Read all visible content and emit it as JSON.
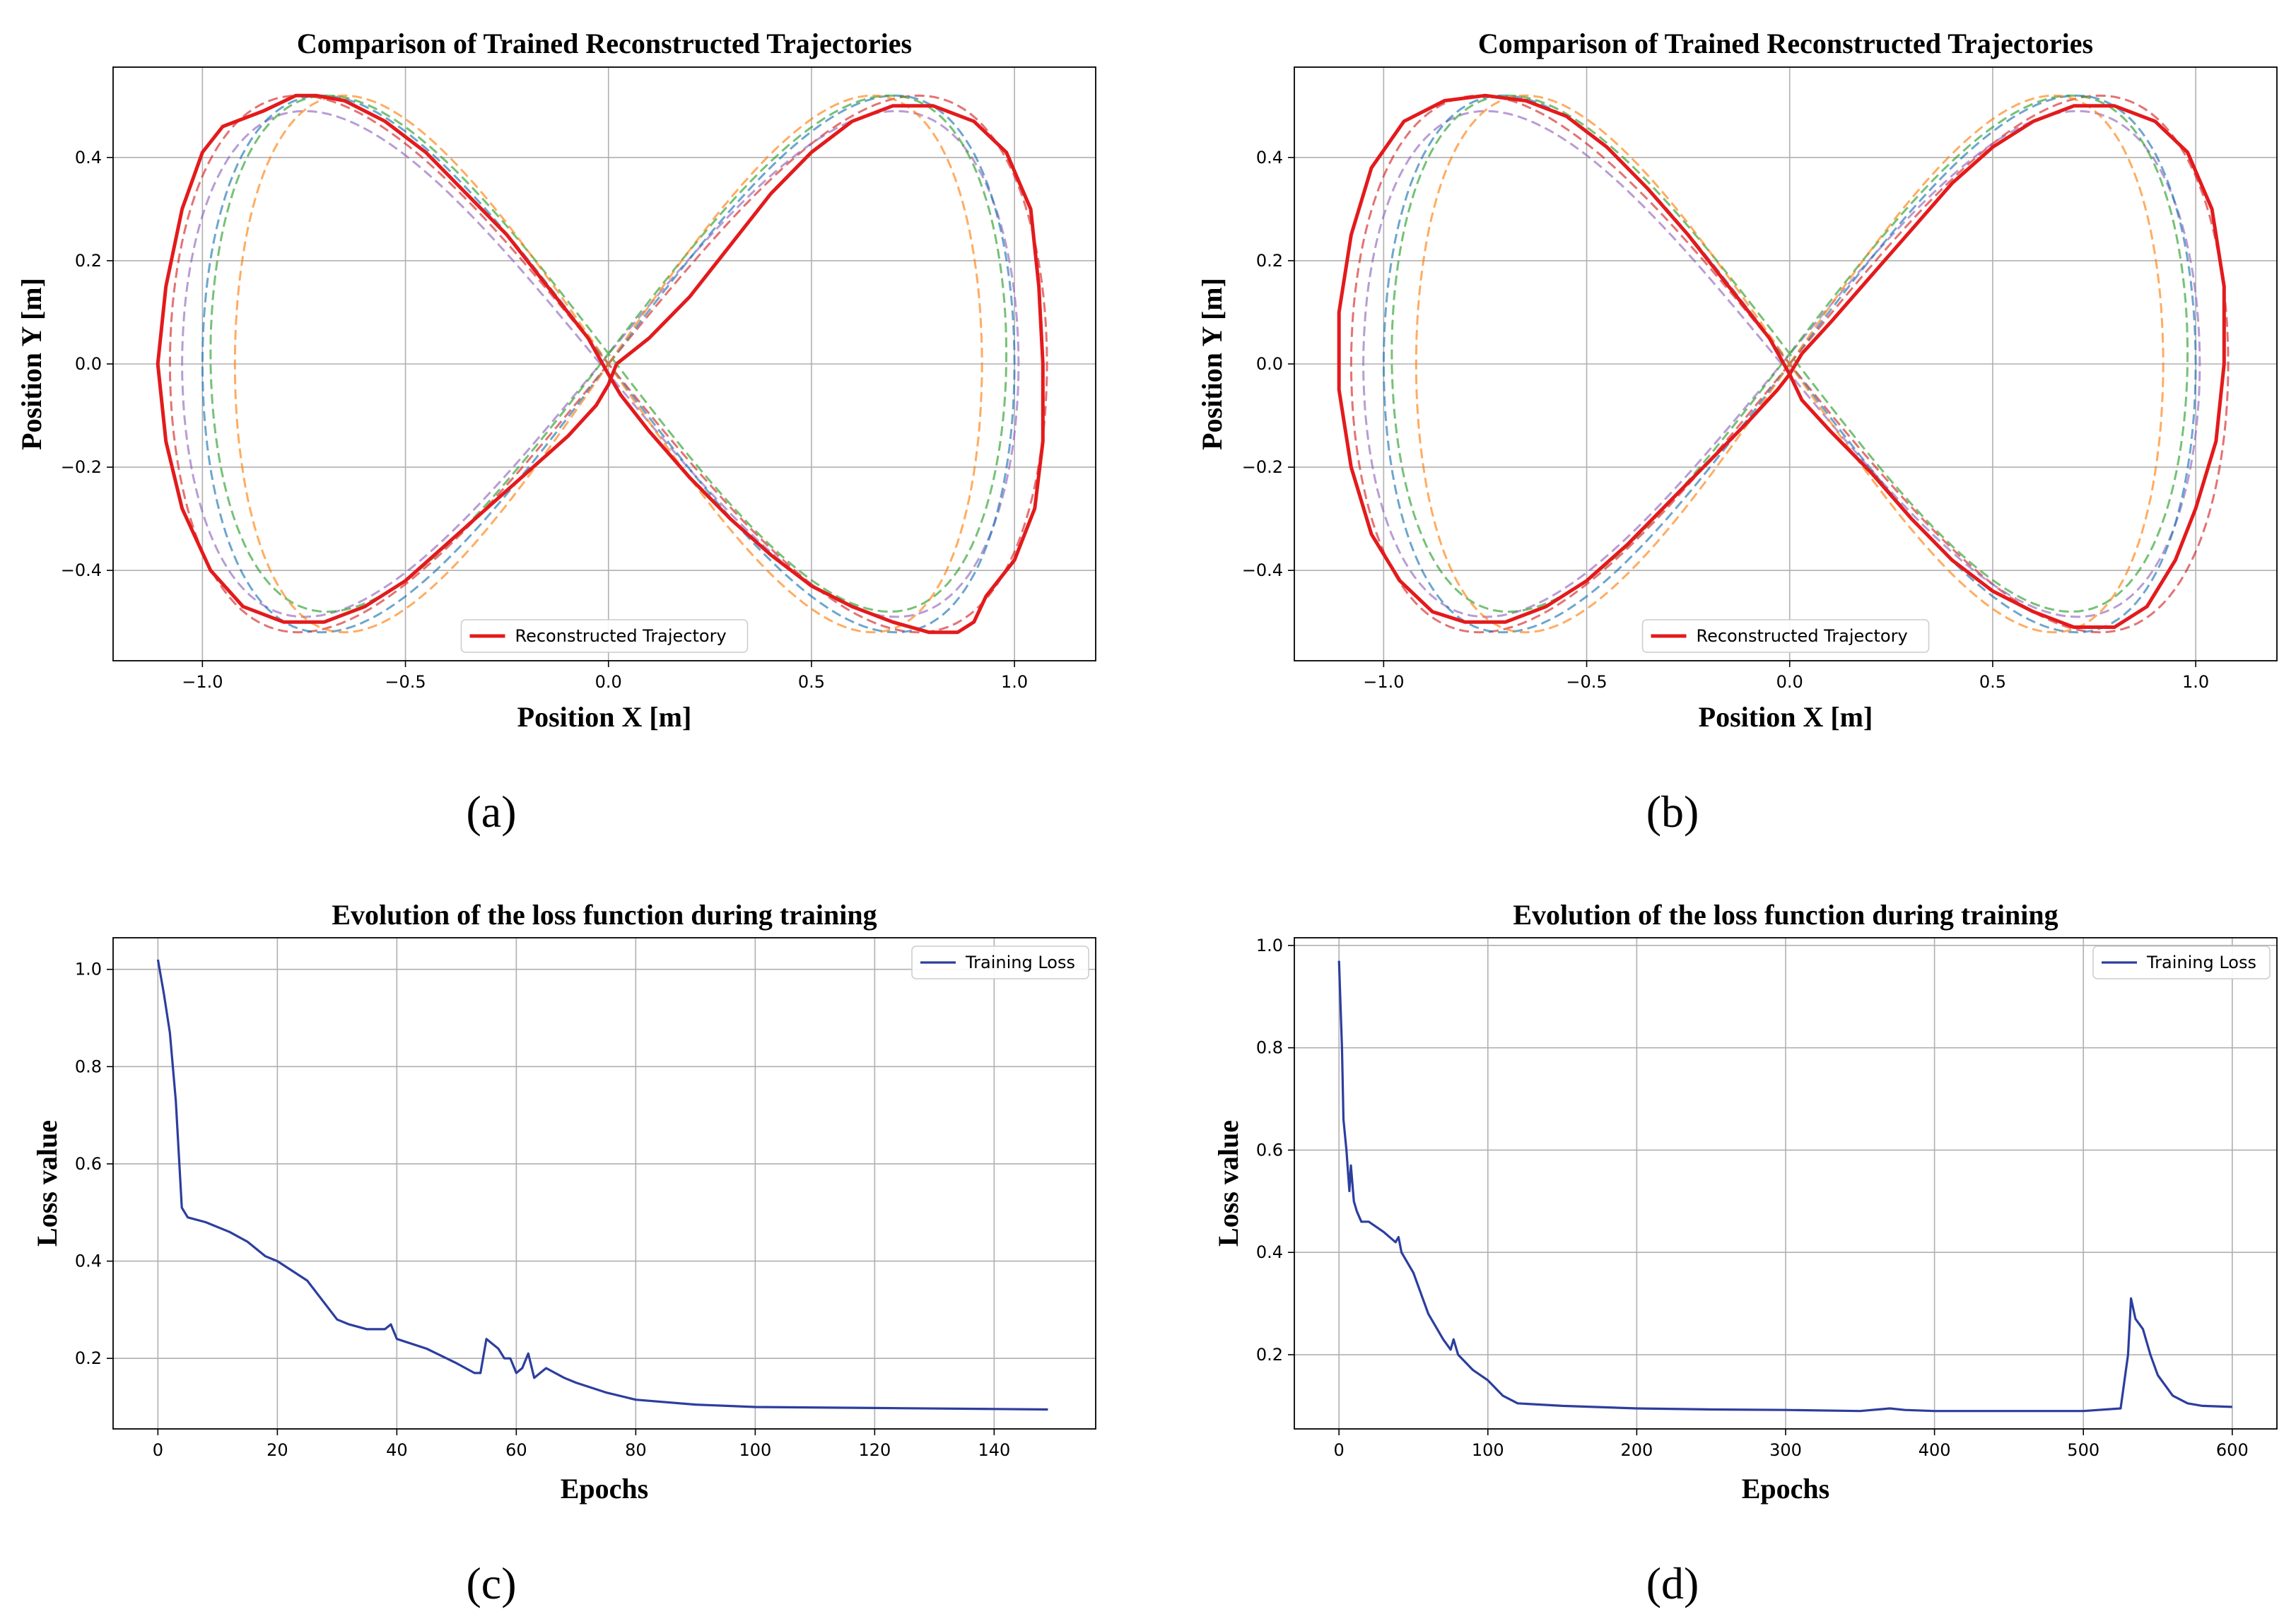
{
  "colors": {
    "reconstructed": "#e31a1c",
    "loss": "#2c3e9e",
    "grid": "#b0b0b0",
    "dashed": [
      "#d62728",
      "#9467bd",
      "#1f77b4",
      "#2ca02c",
      "#ff7f0e"
    ]
  },
  "chart_data": [
    {
      "panel": "(a)",
      "type": "line",
      "title": "Comparison of Trained Reconstructed Trajectories",
      "xlabel": "Position X [m]",
      "ylabel": "Position Y [m]",
      "xlim": [
        -1.22,
        1.2
      ],
      "ylim": [
        -0.575,
        0.575
      ],
      "xticks": [
        -1.0,
        -0.5,
        0.0,
        0.5,
        1.0
      ],
      "xtick_labels": [
        "−1.0",
        "−0.5",
        "0.0",
        "0.5",
        "1.0"
      ],
      "yticks": [
        -0.4,
        -0.2,
        0.0,
        0.2,
        0.4
      ],
      "ytick_labels": [
        "−0.4",
        "−0.2",
        "0.0",
        "0.2",
        "0.4"
      ],
      "grid": true,
      "legend": {
        "position": "bottom-center",
        "entries": [
          "Reconstructed Trajectory"
        ]
      },
      "dashed_curves": [
        {
          "a": 1.08,
          "b": 0.52,
          "cx": 0.0,
          "cy": 0.0,
          "color_index": 0
        },
        {
          "a": 1.03,
          "b": 0.49,
          "cx": -0.02,
          "cy": 0.0,
          "color_index": 1
        },
        {
          "a": 1.0,
          "b": 0.52,
          "cx": 0.0,
          "cy": 0.0,
          "color_index": 2
        },
        {
          "a": 0.98,
          "b": 0.5,
          "cx": 0.0,
          "cy": 0.02,
          "color_index": 3
        },
        {
          "a": 0.92,
          "b": 0.52,
          "cx": 0.0,
          "cy": 0.0,
          "color_index": 4
        }
      ],
      "series": [
        {
          "name": "Reconstructed Trajectory",
          "points": [
            [
              0.02,
              0.0
            ],
            [
              0.1,
              0.05
            ],
            [
              0.2,
              0.13
            ],
            [
              0.3,
              0.23
            ],
            [
              0.4,
              0.33
            ],
            [
              0.5,
              0.41
            ],
            [
              0.6,
              0.47
            ],
            [
              0.7,
              0.5
            ],
            [
              0.8,
              0.5
            ],
            [
              0.9,
              0.47
            ],
            [
              0.98,
              0.41
            ],
            [
              1.04,
              0.3
            ],
            [
              1.06,
              0.15
            ],
            [
              1.07,
              0.0
            ],
            [
              1.07,
              -0.15
            ],
            [
              1.05,
              -0.28
            ],
            [
              1.0,
              -0.38
            ],
            [
              0.93,
              -0.45
            ],
            [
              0.9,
              -0.5
            ],
            [
              0.86,
              -0.52
            ],
            [
              0.79,
              -0.52
            ],
            [
              0.7,
              -0.5
            ],
            [
              0.6,
              -0.47
            ],
            [
              0.5,
              -0.43
            ],
            [
              0.4,
              -0.37
            ],
            [
              0.3,
              -0.3
            ],
            [
              0.2,
              -0.22
            ],
            [
              0.1,
              -0.13
            ],
            [
              0.03,
              -0.06
            ],
            [
              0.0,
              -0.02
            ],
            [
              -0.05,
              0.05
            ],
            [
              -0.15,
              0.15
            ],
            [
              -0.25,
              0.25
            ],
            [
              -0.35,
              0.33
            ],
            [
              -0.45,
              0.41
            ],
            [
              -0.55,
              0.47
            ],
            [
              -0.65,
              0.51
            ],
            [
              -0.72,
              0.52
            ],
            [
              -0.77,
              0.52
            ],
            [
              -0.85,
              0.49
            ],
            [
              -0.95,
              0.46
            ],
            [
              -1.0,
              0.41
            ],
            [
              -1.05,
              0.3
            ],
            [
              -1.09,
              0.15
            ],
            [
              -1.11,
              0.0
            ],
            [
              -1.09,
              -0.15
            ],
            [
              -1.05,
              -0.28
            ],
            [
              -0.98,
              -0.4
            ],
            [
              -0.9,
              -0.47
            ],
            [
              -0.8,
              -0.5
            ],
            [
              -0.7,
              -0.5
            ],
            [
              -0.6,
              -0.47
            ],
            [
              -0.5,
              -0.42
            ],
            [
              -0.4,
              -0.35
            ],
            [
              -0.3,
              -0.28
            ],
            [
              -0.2,
              -0.21
            ],
            [
              -0.1,
              -0.14
            ],
            [
              -0.03,
              -0.08
            ],
            [
              0.0,
              -0.04
            ],
            [
              0.02,
              0.0
            ]
          ]
        }
      ]
    },
    {
      "panel": "(b)",
      "type": "line",
      "title": "Comparison of Trained Reconstructed Trajectories",
      "xlabel": "Position X [m]",
      "ylabel": "Position Y [m]",
      "xlim": [
        -1.22,
        1.2
      ],
      "ylim": [
        -0.575,
        0.575
      ],
      "xticks": [
        -1.0,
        -0.5,
        0.0,
        0.5,
        1.0
      ],
      "xtick_labels": [
        "−1.0",
        "−0.5",
        "0.0",
        "0.5",
        "1.0"
      ],
      "yticks": [
        -0.4,
        -0.2,
        0.0,
        0.2,
        0.4
      ],
      "ytick_labels": [
        "−0.4",
        "−0.2",
        "0.0",
        "0.2",
        "0.4"
      ],
      "grid": true,
      "legend": {
        "position": "bottom-center",
        "entries": [
          "Reconstructed Trajectory"
        ]
      },
      "dashed_curves": [
        {
          "a": 1.08,
          "b": 0.52,
          "cx": 0.0,
          "cy": 0.0,
          "color_index": 0
        },
        {
          "a": 1.03,
          "b": 0.49,
          "cx": -0.02,
          "cy": 0.0,
          "color_index": 1
        },
        {
          "a": 1.0,
          "b": 0.52,
          "cx": 0.0,
          "cy": 0.0,
          "color_index": 2
        },
        {
          "a": 0.98,
          "b": 0.5,
          "cx": 0.0,
          "cy": 0.02,
          "color_index": 3
        },
        {
          "a": 0.92,
          "b": 0.52,
          "cx": 0.0,
          "cy": 0.0,
          "color_index": 4
        }
      ],
      "series": [
        {
          "name": "Reconstructed Trajectory",
          "points": [
            [
              0.03,
              0.02
            ],
            [
              0.1,
              0.08
            ],
            [
              0.2,
              0.17
            ],
            [
              0.3,
              0.26
            ],
            [
              0.4,
              0.35
            ],
            [
              0.5,
              0.42
            ],
            [
              0.6,
              0.47
            ],
            [
              0.7,
              0.5
            ],
            [
              0.8,
              0.5
            ],
            [
              0.9,
              0.47
            ],
            [
              0.98,
              0.41
            ],
            [
              1.04,
              0.3
            ],
            [
              1.07,
              0.15
            ],
            [
              1.07,
              0.0
            ],
            [
              1.05,
              -0.15
            ],
            [
              1.0,
              -0.28
            ],
            [
              0.95,
              -0.38
            ],
            [
              0.88,
              -0.47
            ],
            [
              0.8,
              -0.51
            ],
            [
              0.7,
              -0.51
            ],
            [
              0.6,
              -0.48
            ],
            [
              0.5,
              -0.44
            ],
            [
              0.4,
              -0.38
            ],
            [
              0.3,
              -0.3
            ],
            [
              0.2,
              -0.21
            ],
            [
              0.1,
              -0.13
            ],
            [
              0.03,
              -0.07
            ],
            [
              0.0,
              -0.02
            ],
            [
              -0.05,
              0.05
            ],
            [
              -0.15,
              0.15
            ],
            [
              -0.25,
              0.25
            ],
            [
              -0.35,
              0.34
            ],
            [
              -0.45,
              0.42
            ],
            [
              -0.55,
              0.48
            ],
            [
              -0.65,
              0.51
            ],
            [
              -0.75,
              0.52
            ],
            [
              -0.85,
              0.51
            ],
            [
              -0.95,
              0.47
            ],
            [
              -1.03,
              0.38
            ],
            [
              -1.08,
              0.25
            ],
            [
              -1.11,
              0.1
            ],
            [
              -1.11,
              -0.05
            ],
            [
              -1.08,
              -0.2
            ],
            [
              -1.03,
              -0.33
            ],
            [
              -0.96,
              -0.42
            ],
            [
              -0.88,
              -0.48
            ],
            [
              -0.8,
              -0.5
            ],
            [
              -0.7,
              -0.5
            ],
            [
              -0.6,
              -0.47
            ],
            [
              -0.5,
              -0.42
            ],
            [
              -0.4,
              -0.35
            ],
            [
              -0.3,
              -0.27
            ],
            [
              -0.2,
              -0.19
            ],
            [
              -0.1,
              -0.11
            ],
            [
              -0.03,
              -0.05
            ],
            [
              0.0,
              -0.02
            ],
            [
              0.03,
              0.02
            ]
          ]
        }
      ]
    },
    {
      "panel": "(c)",
      "type": "line",
      "title": "Evolution of the loss function during training",
      "xlabel": "Epochs",
      "ylabel": "Loss value",
      "xlim": [
        -7.5,
        157
      ],
      "ylim": [
        0.055,
        1.065
      ],
      "xticks": [
        0,
        20,
        40,
        60,
        80,
        100,
        120,
        140
      ],
      "xtick_labels": [
        "0",
        "20",
        "40",
        "60",
        "80",
        "100",
        "120",
        "140"
      ],
      "yticks": [
        0.2,
        0.4,
        0.6,
        0.8,
        1.0
      ],
      "ytick_labels": [
        "0.2",
        "0.4",
        "0.6",
        "0.8",
        "1.0"
      ],
      "grid": true,
      "legend": {
        "position": "top-right",
        "entries": [
          "Training Loss"
        ]
      },
      "series": [
        {
          "name": "Training Loss",
          "x": [
            0,
            1,
            2,
            3,
            4,
            5,
            8,
            12,
            15,
            18,
            20,
            25,
            30,
            32,
            35,
            38,
            39,
            40,
            45,
            50,
            53,
            54,
            55,
            57,
            58,
            59,
            60,
            61,
            62,
            63,
            65,
            68,
            70,
            75,
            80,
            90,
            100,
            120,
            140,
            149
          ],
          "y": [
            1.02,
            0.95,
            0.87,
            0.73,
            0.51,
            0.49,
            0.48,
            0.46,
            0.44,
            0.41,
            0.4,
            0.36,
            0.28,
            0.27,
            0.26,
            0.26,
            0.27,
            0.24,
            0.22,
            0.19,
            0.17,
            0.17,
            0.24,
            0.22,
            0.2,
            0.2,
            0.17,
            0.18,
            0.21,
            0.16,
            0.18,
            0.16,
            0.15,
            0.13,
            0.115,
            0.105,
            0.1,
            0.098,
            0.096,
            0.095
          ]
        }
      ]
    },
    {
      "panel": "(d)",
      "type": "line",
      "title": "Evolution of the loss function during training",
      "xlabel": "Epochs",
      "ylabel": "Loss value",
      "xlim": [
        -30,
        630
      ],
      "ylim": [
        0.055,
        1.015
      ],
      "xticks": [
        0,
        100,
        200,
        300,
        400,
        500,
        600
      ],
      "xtick_labels": [
        "0",
        "100",
        "200",
        "300",
        "400",
        "500",
        "600"
      ],
      "yticks": [
        0.2,
        0.4,
        0.6,
        0.8,
        1.0
      ],
      "ytick_labels": [
        "0.2",
        "0.4",
        "0.6",
        "0.8",
        "1.0"
      ],
      "grid": true,
      "legend": {
        "position": "top-right",
        "entries": [
          "Training Loss"
        ]
      },
      "series": [
        {
          "name": "Training Loss",
          "x": [
            0,
            2,
            3,
            5,
            7,
            8,
            10,
            12,
            15,
            20,
            30,
            38,
            40,
            42,
            50,
            60,
            70,
            75,
            77,
            80,
            90,
            100,
            110,
            120,
            150,
            200,
            250,
            300,
            350,
            370,
            380,
            400,
            450,
            500,
            525,
            530,
            532,
            535,
            540,
            545,
            550,
            560,
            570,
            580,
            600
          ],
          "y": [
            0.97,
            0.8,
            0.66,
            0.6,
            0.52,
            0.57,
            0.5,
            0.48,
            0.46,
            0.46,
            0.44,
            0.42,
            0.43,
            0.4,
            0.36,
            0.28,
            0.23,
            0.21,
            0.23,
            0.2,
            0.17,
            0.15,
            0.12,
            0.105,
            0.1,
            0.095,
            0.093,
            0.092,
            0.09,
            0.095,
            0.092,
            0.09,
            0.09,
            0.09,
            0.095,
            0.2,
            0.31,
            0.27,
            0.25,
            0.2,
            0.16,
            0.12,
            0.105,
            0.1,
            0.098
          ]
        }
      ]
    }
  ]
}
